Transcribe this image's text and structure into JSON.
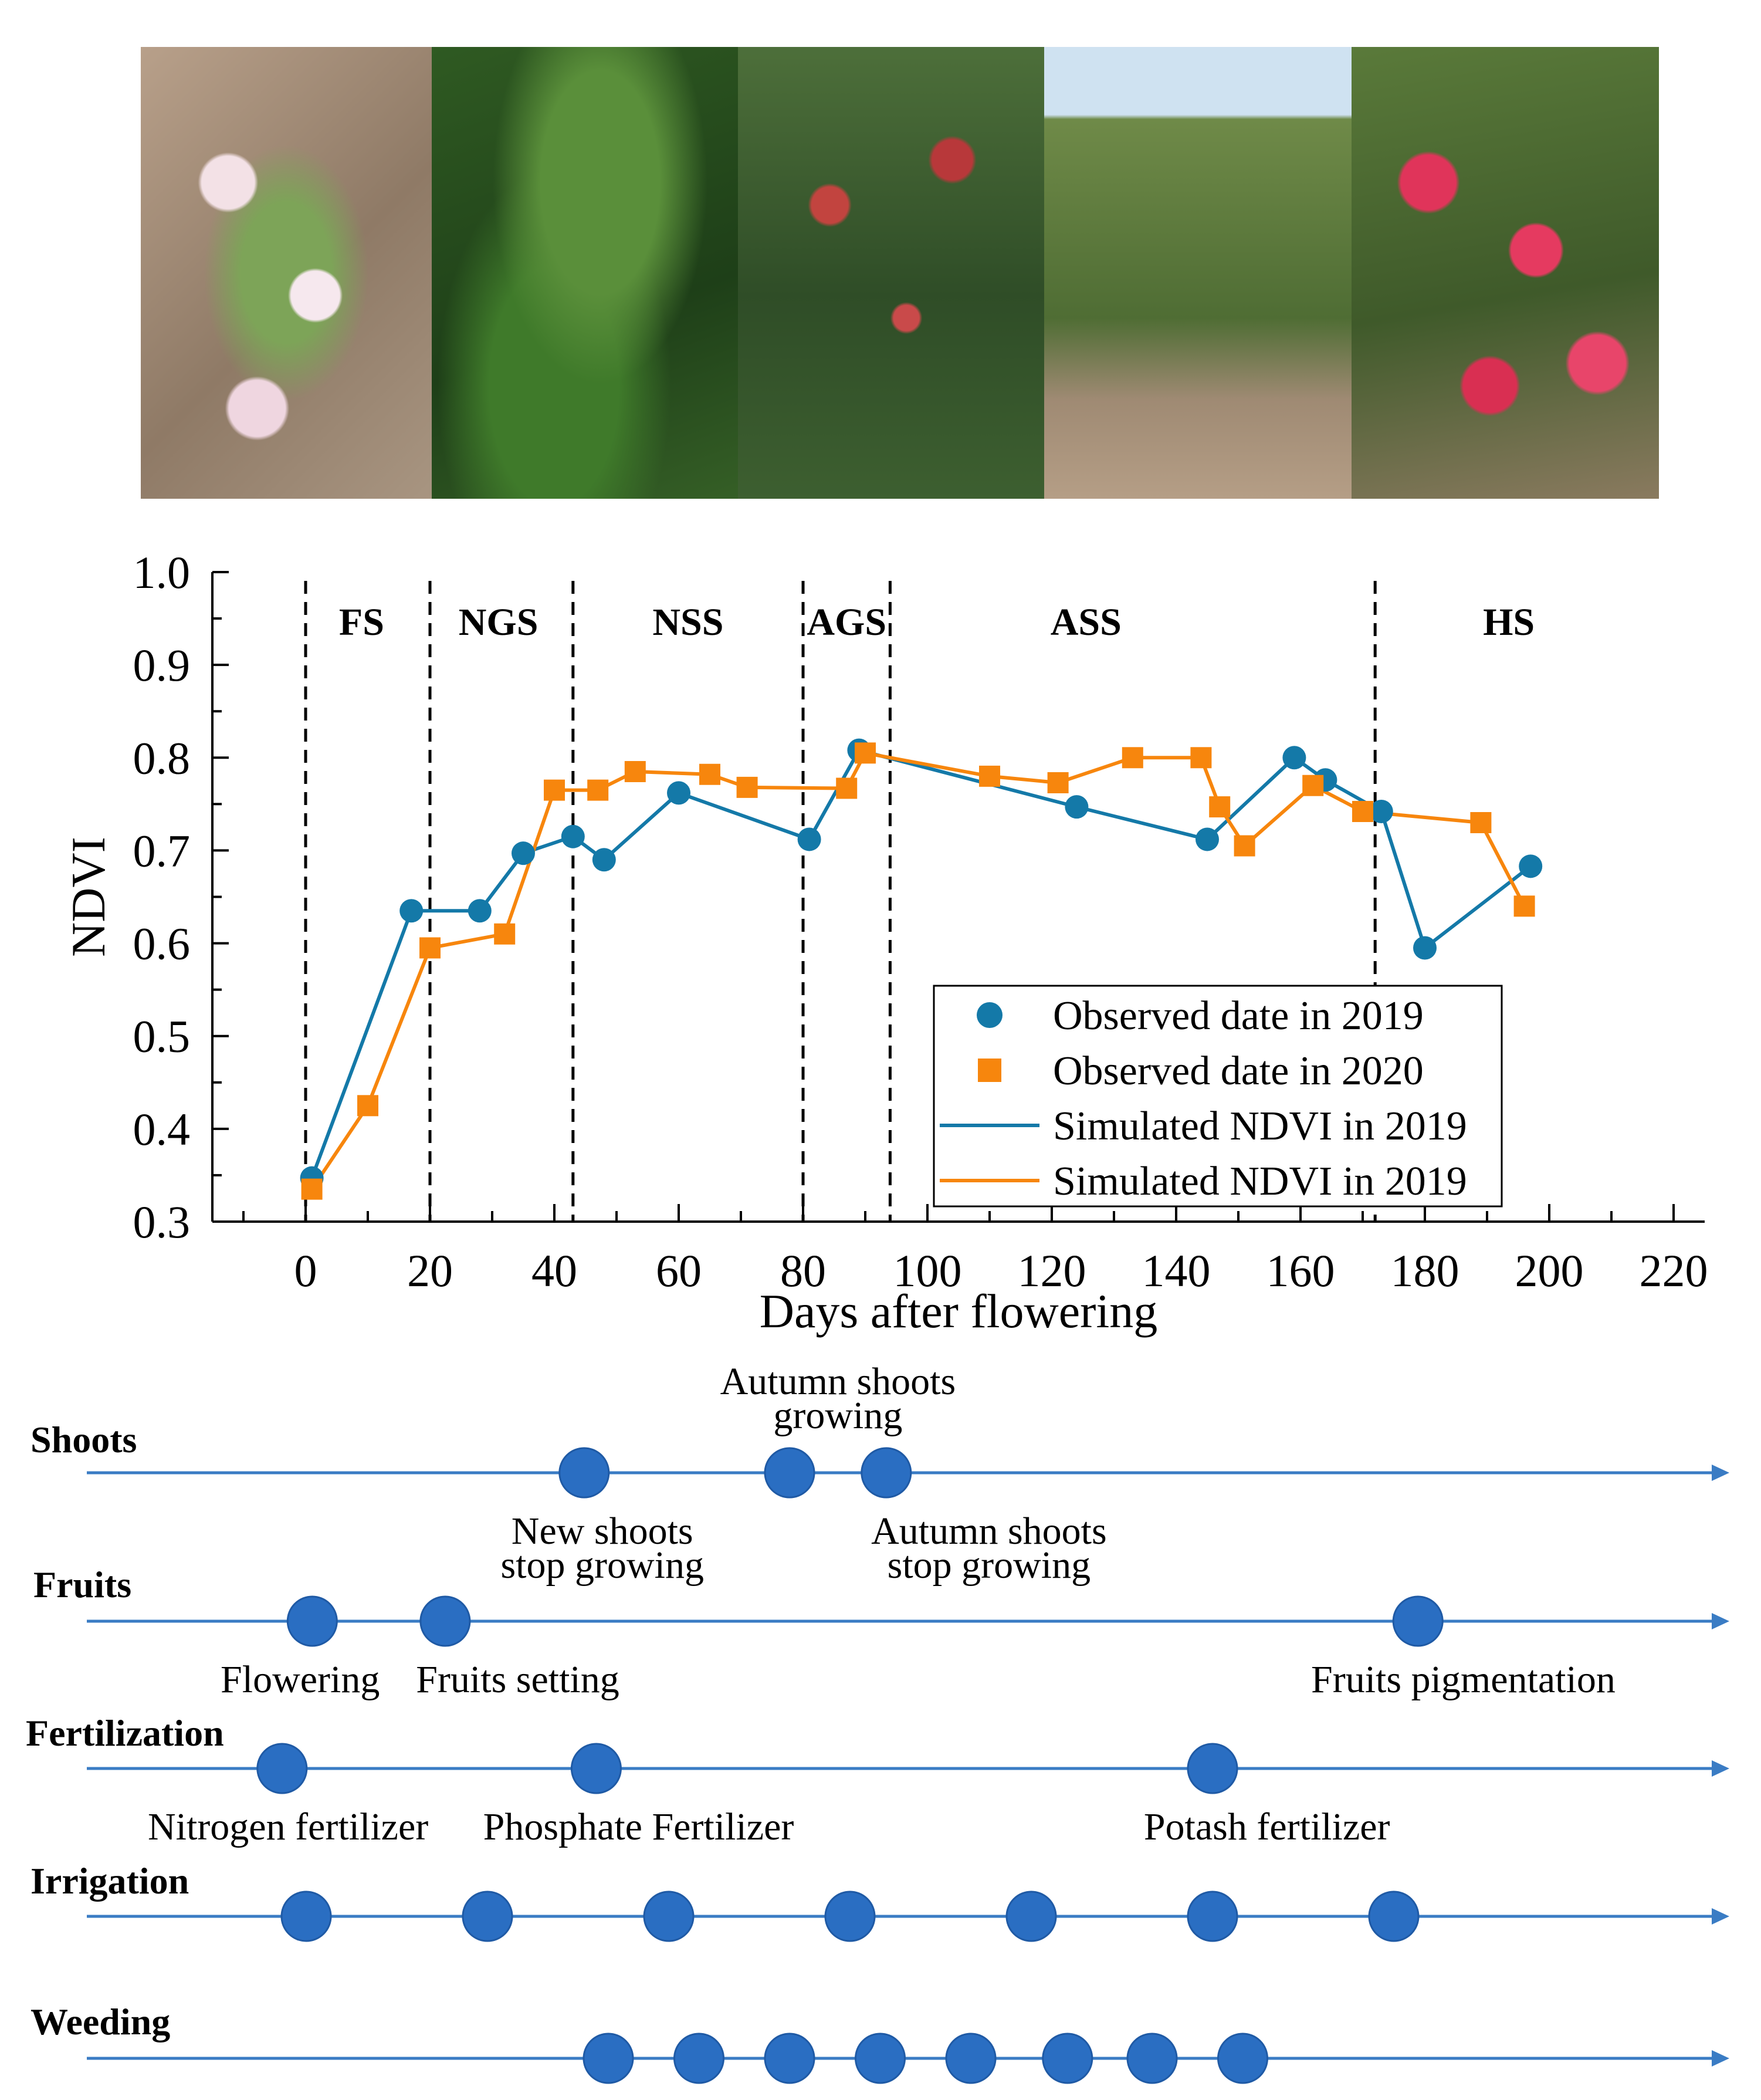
{
  "photos": [
    {
      "icon": "apple-blossom-photo"
    },
    {
      "icon": "young-fruit-leaves-photo"
    },
    {
      "icon": "bagged-apple-trees-photo"
    },
    {
      "icon": "orchard-rows-photo"
    },
    {
      "icon": "ripe-red-apples-photo"
    }
  ],
  "chart_data": {
    "type": "line",
    "xlabel": "Days after flowering",
    "ylabel": "NDVI",
    "xlim": [
      -15,
      225
    ],
    "ylim": [
      0.3,
      1.0
    ],
    "x_ticks": [
      0,
      20,
      40,
      60,
      80,
      100,
      120,
      140,
      160,
      180,
      200,
      220
    ],
    "y_ticks": [
      0.3,
      0.4,
      0.5,
      0.6,
      0.7,
      0.8,
      0.9,
      1.0
    ],
    "x_tick_labels": [
      "0",
      "20",
      "40",
      "60",
      "80",
      "100",
      "120",
      "140",
      "160",
      "180",
      "200",
      "220"
    ],
    "y_tick_labels": [
      "0.3",
      "0.4",
      "0.5",
      "0.6",
      "0.7",
      "0.8",
      "0.9",
      "1.0"
    ],
    "stage_boundaries": [
      0,
      20,
      43,
      80,
      94,
      172
    ],
    "stages": [
      {
        "label": "FS",
        "x": 9
      },
      {
        "label": "NGS",
        "x": 31
      },
      {
        "label": "NSS",
        "x": 61.5
      },
      {
        "label": "AGS",
        "x": 87
      },
      {
        "label": "ASS",
        "x": 125.5
      },
      {
        "label": "HS",
        "x": 193.5
      }
    ],
    "legend_position": "lower-right",
    "series": [
      {
        "name": "Observed date in 2019",
        "kind": "scatter",
        "marker": "circle",
        "color": "#1479a8",
        "x": [
          1,
          17,
          28,
          35,
          43,
          48,
          60,
          81,
          89,
          124,
          145,
          159,
          164,
          173,
          180,
          197
        ],
        "y": [
          0.347,
          0.635,
          0.635,
          0.697,
          0.715,
          0.69,
          0.762,
          0.712,
          0.808,
          0.747,
          0.712,
          0.8,
          0.776,
          0.742,
          0.595,
          0.683
        ]
      },
      {
        "name": "Observed date in 2020",
        "kind": "scatter",
        "marker": "square",
        "color": "#f7860d",
        "x": [
          1,
          10,
          20,
          32,
          40,
          47,
          53,
          65,
          71,
          87,
          90,
          110,
          121,
          133,
          144,
          147,
          151,
          162,
          170,
          189,
          196
        ],
        "y": [
          0.335,
          0.425,
          0.595,
          0.61,
          0.765,
          0.765,
          0.785,
          0.782,
          0.768,
          0.767,
          0.805,
          0.78,
          0.773,
          0.8,
          0.8,
          0.747,
          0.705,
          0.77,
          0.742,
          0.73,
          0.64
        ]
      },
      {
        "name": "Simulated NDVI in 2019",
        "kind": "line",
        "color": "#1479a8",
        "x": [
          1,
          17,
          28,
          35,
          43,
          48,
          60,
          81,
          89,
          124,
          145,
          159,
          164,
          173,
          180,
          197
        ],
        "y": [
          0.347,
          0.635,
          0.635,
          0.697,
          0.715,
          0.69,
          0.762,
          0.712,
          0.808,
          0.747,
          0.712,
          0.8,
          0.776,
          0.742,
          0.595,
          0.683
        ]
      },
      {
        "name": "Simulated NDVI in 2019",
        "kind": "line",
        "color": "#f7860d",
        "x": [
          1,
          10,
          20,
          32,
          40,
          47,
          53,
          65,
          71,
          87,
          90,
          110,
          121,
          133,
          144,
          147,
          151,
          162,
          170,
          189,
          196
        ],
        "y": [
          0.335,
          0.425,
          0.595,
          0.61,
          0.765,
          0.765,
          0.785,
          0.782,
          0.768,
          0.767,
          0.805,
          0.78,
          0.773,
          0.8,
          0.8,
          0.747,
          0.705,
          0.77,
          0.742,
          0.73,
          0.64
        ]
      }
    ]
  },
  "timeline": {
    "color": "#2a6ec2",
    "line_color": "#3a7cc4",
    "rows": [
      {
        "label": "Shoots",
        "dots": [
          46,
          80,
          96
        ],
        "annotations": [
          {
            "lines": [
              "Autumn shoots",
              "growing"
            ],
            "x": 88,
            "pos": "above"
          },
          {
            "lines": [
              "New shoots",
              "stop growing"
            ],
            "x": 49,
            "pos": "below"
          },
          {
            "lines": [
              "Autumn shoots",
              "stop growing"
            ],
            "x": 113,
            "pos": "below"
          }
        ]
      },
      {
        "label": "Fruits",
        "dots": [
          1,
          23,
          184
        ],
        "annotations": [
          {
            "lines": [
              "Flowering"
            ],
            "x": -1,
            "pos": "below"
          },
          {
            "lines": [
              "Fruits setting"
            ],
            "x": 35,
            "pos": "below"
          },
          {
            "lines": [
              "Fruits pigmentation"
            ],
            "x": 191.5,
            "pos": "below"
          }
        ]
      },
      {
        "label": "Fertilization",
        "dots": [
          -4,
          48,
          150
        ],
        "annotations": [
          {
            "lines": [
              "Nitrogen fertilizer"
            ],
            "x": -3,
            "pos": "below"
          },
          {
            "lines": [
              "Phosphate Fertilizer"
            ],
            "x": 55,
            "pos": "below"
          },
          {
            "lines": [
              "Potash fertilizer"
            ],
            "x": 159,
            "pos": "below"
          }
        ]
      },
      {
        "label": "Irrigation",
        "dots": [
          0,
          30,
          60,
          90,
          120,
          150,
          180
        ],
        "annotations": []
      },
      {
        "label": "Weeding",
        "dots": [
          50,
          65,
          80,
          95,
          110,
          126,
          140,
          155
        ],
        "annotations": []
      }
    ]
  }
}
